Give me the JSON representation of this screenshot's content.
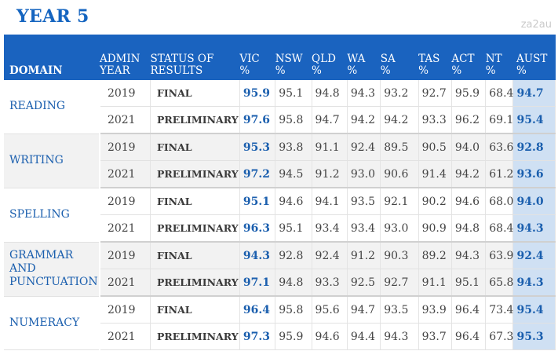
{
  "title": "YEAR 5",
  "watermark": "za2au",
  "headers": {
    "domain": "DOMAIN",
    "admin_year": [
      "ADMIN",
      "YEAR"
    ],
    "status": [
      "STATUS OF",
      "RESULTS"
    ],
    "states": [
      {
        "code": "VIC",
        "unit": "%"
      },
      {
        "code": "NSW",
        "unit": "%"
      },
      {
        "code": "QLD",
        "unit": "%"
      },
      {
        "code": "WA",
        "unit": "%"
      },
      {
        "code": "SA",
        "unit": "%"
      },
      {
        "code": "TAS",
        "unit": "%"
      },
      {
        "code": "ACT",
        "unit": "%"
      },
      {
        "code": "NT",
        "unit": "%"
      },
      {
        "code": "AUST",
        "unit": "%"
      }
    ]
  },
  "rows": [
    {
      "domain": "READING",
      "year": "2019",
      "status": "FINAL",
      "values": [
        "95.9",
        "95.1",
        "94.8",
        "94.3",
        "93.2",
        "92.7",
        "95.9",
        "68.4",
        "94.7"
      ]
    },
    {
      "domain": "",
      "year": "2021",
      "status": "PRELIMINARY",
      "values": [
        "97.6",
        "95.8",
        "94.7",
        "94.2",
        "94.2",
        "93.3",
        "96.2",
        "69.1",
        "95.4"
      ]
    },
    {
      "domain": "WRITING",
      "year": "2019",
      "status": "FINAL",
      "values": [
        "95.3",
        "93.8",
        "91.1",
        "92.4",
        "89.5",
        "90.5",
        "94.0",
        "63.6",
        "92.8"
      ]
    },
    {
      "domain": "",
      "year": "2021",
      "status": "PRELIMINARY",
      "values": [
        "97.2",
        "94.5",
        "91.2",
        "93.0",
        "90.6",
        "91.4",
        "94.2",
        "61.2",
        "93.6"
      ]
    },
    {
      "domain": "SPELLING",
      "year": "2019",
      "status": "FINAL",
      "values": [
        "95.1",
        "94.6",
        "94.1",
        "93.5",
        "92.1",
        "90.2",
        "94.6",
        "68.0",
        "94.0"
      ]
    },
    {
      "domain": "",
      "year": "2021",
      "status": "PRELIMINARY",
      "values": [
        "96.3",
        "95.1",
        "93.4",
        "93.4",
        "93.0",
        "90.9",
        "94.8",
        "68.4",
        "94.3"
      ]
    },
    {
      "domain": "GRAMMAR AND PUNCTUATION",
      "year": "2019",
      "status": "FINAL",
      "values": [
        "94.3",
        "92.8",
        "92.4",
        "91.2",
        "90.3",
        "89.2",
        "94.3",
        "63.9",
        "92.4"
      ]
    },
    {
      "domain": "",
      "year": "2021",
      "status": "PRELIMINARY",
      "values": [
        "97.1",
        "94.8",
        "93.3",
        "92.5",
        "92.7",
        "91.1",
        "95.1",
        "65.8",
        "94.3"
      ]
    },
    {
      "domain": "NUMERACY",
      "year": "2019",
      "status": "FINAL",
      "values": [
        "96.4",
        "95.8",
        "95.6",
        "94.7",
        "93.5",
        "93.9",
        "96.4",
        "73.4",
        "95.4"
      ]
    },
    {
      "domain": "",
      "year": "2021",
      "status": "PRELIMINARY",
      "values": [
        "97.3",
        "95.9",
        "94.6",
        "94.4",
        "94.3",
        "93.7",
        "96.4",
        "67.3",
        "95.3"
      ]
    }
  ],
  "domain_lines": {
    "grammar": [
      "GRAMMAR",
      "AND",
      "PUNCTUATION"
    ]
  }
}
